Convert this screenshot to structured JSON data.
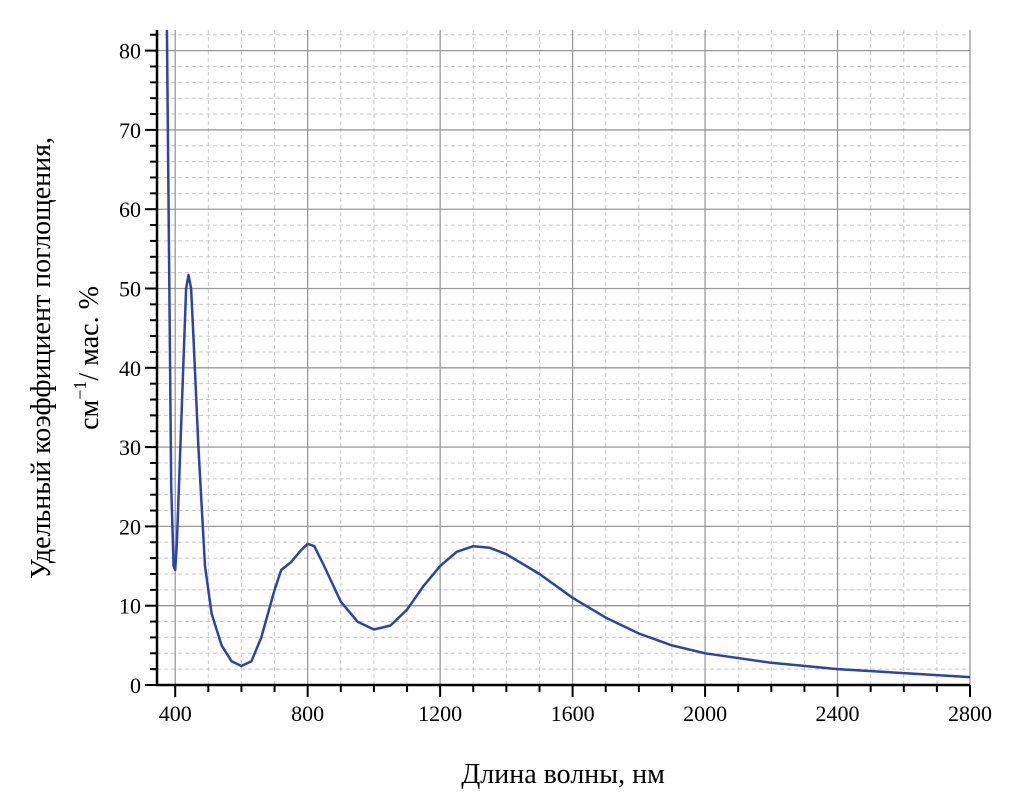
{
  "chart_data": {
    "type": "line",
    "title": "",
    "xlabel": "Длина волны, нм",
    "ylabel_line1": "Удельный коэффициент поглощения,",
    "ylabel_line2_base": "см",
    "ylabel_line2_sup": "−1",
    "ylabel_line2_rest": "/ мас. %",
    "xlim": [
      345,
      2800
    ],
    "ylim": [
      0,
      82.6
    ],
    "xticks": [
      400,
      800,
      1200,
      1600,
      2000,
      2400,
      2800
    ],
    "yticks": [
      0,
      10,
      20,
      30,
      40,
      50,
      60,
      70,
      80
    ],
    "grid": true,
    "color": "#2a44a8",
    "series": [
      {
        "x": [
          375,
          380,
          388,
          395,
          400,
          405,
          420,
          433,
          440,
          448,
          455,
          470,
          490,
          510,
          540,
          570,
          600,
          630,
          660,
          700,
          720,
          750,
          780,
          800,
          820,
          850,
          900,
          950,
          1000,
          1050,
          1100,
          1150,
          1200,
          1250,
          1300,
          1350,
          1400,
          1500,
          1600,
          1700,
          1800,
          1900,
          2000,
          2200,
          2400,
          2600,
          2800
        ],
        "y": [
          83,
          60,
          25,
          15,
          14.5,
          18,
          35,
          50,
          51.7,
          50,
          44,
          30,
          15,
          9,
          5,
          3,
          2.4,
          3,
          6,
          12,
          14.5,
          15.5,
          17,
          17.8,
          17.5,
          15,
          10.5,
          8,
          7,
          7.5,
          9.5,
          12.5,
          15,
          16.8,
          17.5,
          17.3,
          16.5,
          14,
          11,
          8.5,
          6.5,
          5,
          4,
          2.8,
          2,
          1.5,
          1.0
        ]
      }
    ]
  }
}
